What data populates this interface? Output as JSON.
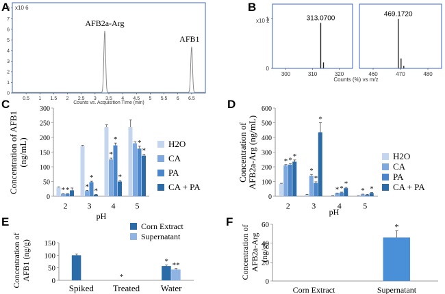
{
  "panels": {
    "A": "A",
    "B": "B",
    "C": "C",
    "D": "D",
    "E": "E",
    "F": "F"
  },
  "chart_data": [
    {
      "panel": "A",
      "type": "line",
      "x_exponent_label": "x10 6",
      "xlabel": "Counts vs. Acquisition Time (min)",
      "xticks": [
        0.5,
        1,
        1.5,
        2,
        2.5,
        3,
        3.5,
        4,
        4.5,
        5,
        5.5,
        6,
        6.5
      ],
      "yticks": [
        0,
        1,
        2,
        3,
        4,
        5,
        6,
        7,
        8
      ],
      "xlim": [
        0,
        7
      ],
      "ylim": [
        0,
        8.5
      ],
      "peaks": [
        {
          "label": "AFB2a-Arg",
          "x": 3.35,
          "y": 5.8
        },
        {
          "label": "AFB1",
          "x": 6.5,
          "y": 4.3
        }
      ]
    },
    {
      "panel": "B",
      "type": "line",
      "y_exponent_label": "x10 2",
      "xlabel": "Counts (%) vs m/z",
      "subplots": [
        {
          "xticks": [
            300,
            310,
            320
          ],
          "yticks": [
            0,
            1
          ],
          "xlim": [
            295,
            325
          ],
          "ylim": [
            0,
            1.3
          ],
          "peaks": [
            {
              "label": "313.0700",
              "x": 313.07,
              "y": 0.92
            },
            {
              "x": 314.1,
              "y": 0.12
            }
          ]
        },
        {
          "xticks": [
            460,
            470,
            480
          ],
          "xlim": [
            455,
            485
          ],
          "ylim": [
            0,
            1.3
          ],
          "peaks": [
            {
              "label": "469.1720",
              "x": 469.17,
              "y": 1.0
            },
            {
              "x": 470.2,
              "y": 0.2
            },
            {
              "x": 471.2,
              "y": 0.05
            }
          ]
        }
      ]
    },
    {
      "panel": "C",
      "type": "bar",
      "ylabel": "Concentration of AFB1 (ng/mL)",
      "xlabel": "pH",
      "categories": [
        "2",
        "3",
        "4",
        "5"
      ],
      "ylim": [
        0,
        300
      ],
      "yticks": [
        0,
        50,
        100,
        150,
        200,
        250,
        300
      ],
      "series": [
        {
          "name": "H2O",
          "color": "#c3d6ee",
          "values": [
            30,
            170,
            235,
            235
          ],
          "err": [
            2,
            3,
            8,
            25
          ],
          "sig": [
            "",
            "",
            "",
            ""
          ]
        },
        {
          "name": "CA",
          "color": "#7ea9de",
          "values": [
            8,
            18,
            125,
            180
          ],
          "err": [
            1,
            2,
            5,
            5
          ],
          "sig": [
            "*",
            "*",
            "*",
            ""
          ]
        },
        {
          "name": "PA",
          "color": "#4a86c9",
          "values": [
            8,
            48,
            173,
            162
          ],
          "err": [
            1,
            3,
            8,
            8
          ],
          "sig": [
            "*",
            "*",
            "*",
            "*"
          ]
        },
        {
          "name": "CA + PA",
          "color": "#2a6ba8",
          "values": [
            20,
            5,
            50,
            138
          ],
          "err": [
            8,
            1,
            3,
            5
          ],
          "sig": [
            "",
            "*",
            "*",
            "*"
          ]
        }
      ],
      "legend_position": "right"
    },
    {
      "panel": "D",
      "type": "bar",
      "ylabel": "Concentration of AFB2a-Arg (ng/mL)",
      "xlabel": "pH",
      "categories": [
        "2",
        "3",
        "4",
        "5"
      ],
      "ylim": [
        0,
        600
      ],
      "yticks": [
        0,
        100,
        200,
        300,
        400,
        500,
        600
      ],
      "series": [
        {
          "name": "H2O",
          "color": "#c3d6ee",
          "values": [
            85,
            10,
            5,
            3
          ],
          "err": [
            3,
            2,
            1,
            1
          ],
          "sig": [
            "",
            "",
            "",
            ""
          ]
        },
        {
          "name": "CA",
          "color": "#7ea9de",
          "values": [
            210,
            140,
            20,
            12
          ],
          "err": [
            5,
            8,
            2,
            2
          ],
          "sig": [
            "*",
            "*",
            "*",
            "*"
          ]
        },
        {
          "name": "PA",
          "color": "#4a86c9",
          "values": [
            215,
            90,
            25,
            10
          ],
          "err": [
            6,
            8,
            3,
            2
          ],
          "sig": [
            "*",
            "*",
            "*",
            ""
          ]
        },
        {
          "name": "CA + PA",
          "color": "#2a6ba8",
          "values": [
            235,
            435,
            55,
            22
          ],
          "err": [
            12,
            65,
            5,
            3
          ],
          "sig": [
            "*",
            "*",
            "*",
            "*"
          ]
        }
      ],
      "legend_position": "right"
    },
    {
      "panel": "E",
      "type": "bar",
      "ylabel": "Concentration of AFB1 (ng/g)",
      "categories": [
        "Spiked",
        "Treated",
        "Water"
      ],
      "ylim": [
        0,
        150
      ],
      "yticks": [
        0,
        50,
        100,
        150
      ],
      "series": [
        {
          "name": "Corn Extract",
          "color": "#2a6ba8",
          "values": [
            100,
            0,
            57
          ],
          "err": [
            5,
            0,
            4
          ],
          "sig": [
            "",
            "*",
            "*"
          ]
        },
        {
          "name": "Supernatant",
          "color": "#8fb4e3",
          "values": [
            null,
            null,
            43
          ],
          "err": [
            0,
            0,
            4
          ],
          "sig": [
            "",
            "",
            "**"
          ]
        }
      ],
      "legend_position": "top"
    },
    {
      "panel": "F",
      "type": "bar",
      "ylabel": "Concentration of AFB2a-Arg (ng/g)",
      "categories": [
        "Corn Extract",
        "Supernatant"
      ],
      "ylim": [
        0,
        60
      ],
      "yticks": [
        0,
        20,
        40,
        60
      ],
      "values": [
        0,
        46
      ],
      "err": [
        0,
        7
      ],
      "sig": [
        "",
        "*"
      ],
      "color": "#4a90d9"
    }
  ]
}
